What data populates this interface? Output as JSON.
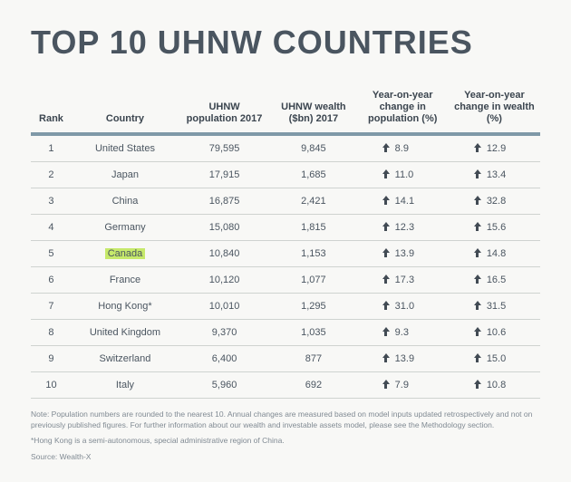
{
  "title": "TOP 10 UHNW COUNTRIES",
  "columns": {
    "rank": "Rank",
    "country": "Country",
    "pop": "UHNW population 2017",
    "wealth": "UHNW wealth ($bn) 2017",
    "yoy_pop": "Year-on-year change in population (%)",
    "yoy_wealth": "Year-on-year change in wealth (%)"
  },
  "highlight_country": "Canada",
  "highlight_color": "#c6e96b",
  "accent_border_color": "#7f99a8",
  "arrow_color": "#424b54",
  "background_color": "#f8f8f6",
  "rows": [
    {
      "rank": "1",
      "country": "United States",
      "pop": "79,595",
      "wealth": "9,845",
      "yoy_pop": "8.9",
      "yoy_wealth": "12.9"
    },
    {
      "rank": "2",
      "country": "Japan",
      "pop": "17,915",
      "wealth": "1,685",
      "yoy_pop": "11.0",
      "yoy_wealth": "13.4"
    },
    {
      "rank": "3",
      "country": "China",
      "pop": "16,875",
      "wealth": "2,421",
      "yoy_pop": "14.1",
      "yoy_wealth": "32.8"
    },
    {
      "rank": "4",
      "country": "Germany",
      "pop": "15,080",
      "wealth": "1,815",
      "yoy_pop": "12.3",
      "yoy_wealth": "15.6"
    },
    {
      "rank": "5",
      "country": "Canada",
      "pop": "10,840",
      "wealth": "1,153",
      "yoy_pop": "13.9",
      "yoy_wealth": "14.8"
    },
    {
      "rank": "6",
      "country": "France",
      "pop": "10,120",
      "wealth": "1,077",
      "yoy_pop": "17.3",
      "yoy_wealth": "16.5"
    },
    {
      "rank": "7",
      "country": "Hong Kong*",
      "pop": "10,010",
      "wealth": "1,295",
      "yoy_pop": "31.0",
      "yoy_wealth": "31.5"
    },
    {
      "rank": "8",
      "country": "United Kingdom",
      "pop": "9,370",
      "wealth": "1,035",
      "yoy_pop": "9.3",
      "yoy_wealth": "10.6"
    },
    {
      "rank": "9",
      "country": "Switzerland",
      "pop": "6,400",
      "wealth": "877",
      "yoy_pop": "13.9",
      "yoy_wealth": "15.0"
    },
    {
      "rank": "10",
      "country": "Italy",
      "pop": "5,960",
      "wealth": "692",
      "yoy_pop": "7.9",
      "yoy_wealth": "10.8"
    }
  ],
  "footnotes": {
    "note": "Note: Population numbers are rounded to the nearest 10. Annual changes are measured based on model inputs updated retrospectively and not on previously published figures. For further information about our wealth and investable assets model, please see the Methodology section.",
    "hk": "*Hong Kong is a semi-autonomous, special administrative region of China.",
    "source": "Source: Wealth-X"
  }
}
